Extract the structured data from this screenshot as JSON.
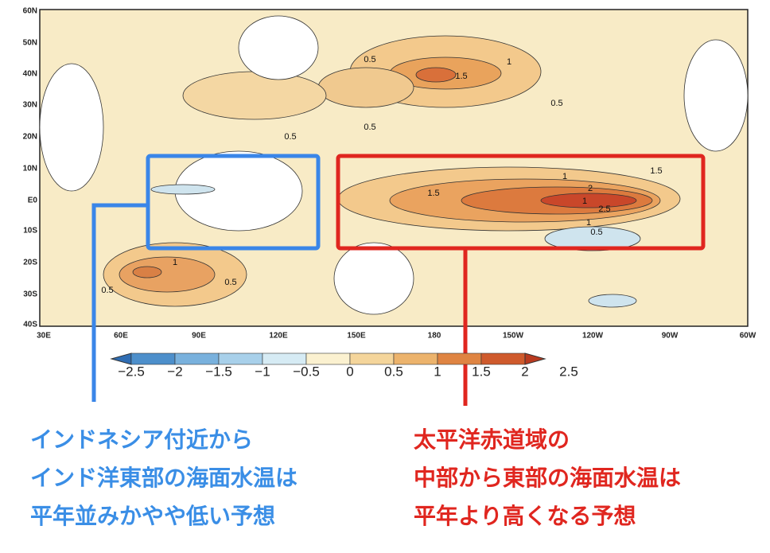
{
  "map": {
    "lat_labels": [
      "60N",
      "50N",
      "40N",
      "30N",
      "20N",
      "10N",
      "E0",
      "10S",
      "20S",
      "30S",
      "40S"
    ],
    "lon_labels": [
      "30E",
      "60E",
      "90E",
      "120E",
      "150E",
      "180",
      "150W",
      "120W",
      "90W",
      "60W"
    ],
    "contour_labels": [
      "0.5",
      "1",
      "1.5",
      "0.5",
      "0.5",
      "0.5",
      "1",
      "1.5",
      "1",
      "2",
      "2.5",
      "1",
      "0.5",
      "1.5",
      "1",
      "0.5",
      "0.5"
    ]
  },
  "colorbar": {
    "labels": [
      "−2.5",
      "−2",
      "−1.5",
      "−1",
      "−0.5",
      "0",
      "0.5",
      "1",
      "1.5",
      "2",
      "2.5"
    ]
  },
  "annotations": [
    {
      "lines": [
        "インドネシア付近から",
        "インド洋東部の海面水温は",
        "平年並みかやや低い予想"
      ]
    },
    {
      "lines": [
        "太平洋赤道域の",
        "中部から東部の海面水温は",
        "平年より高くなる予想"
      ]
    }
  ]
}
